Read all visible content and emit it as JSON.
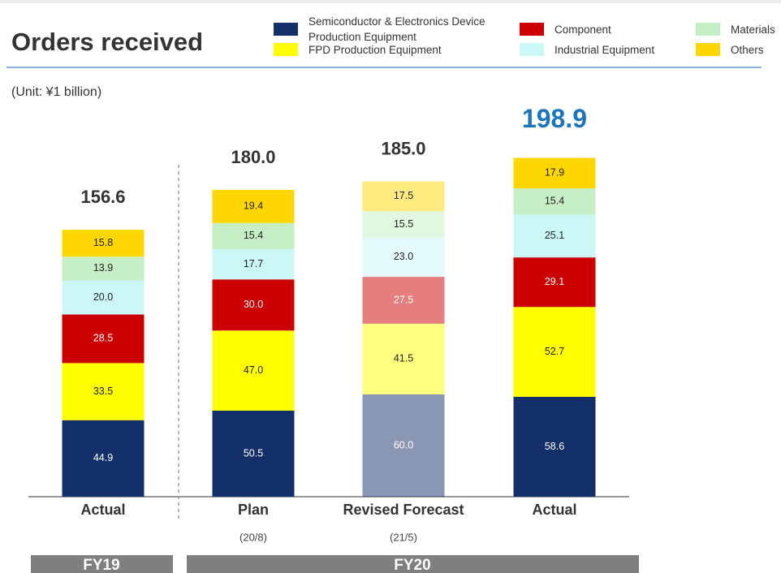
{
  "chart_data": {
    "type": "stacked_bar",
    "title": "Orders received",
    "subtitle": "(Unit: ¥1 billion)",
    "categories": [
      "Actual",
      "Plan",
      "Revised Forecast",
      "Actual"
    ],
    "sub_categories": [
      null,
      "(20/8)",
      "(21/5)",
      null
    ],
    "groups": [
      "FY19",
      "FY20"
    ],
    "faded": [
      false,
      false,
      true,
      false
    ],
    "totals": [
      156.6,
      180.0,
      185.0,
      198.9
    ],
    "totals_labels": [
      "156.6",
      "180.0",
      "185.0",
      "198.9"
    ],
    "highlight_total": [
      false,
      false,
      false,
      true
    ],
    "series": [
      {
        "name": "Semiconductor & Electronics Device Production Equipment",
        "color": "#14306b",
        "values": [
          44.9,
          50.5,
          60.0,
          58.6
        ],
        "value_labels": [
          "44.9",
          "50.5",
          "60.0",
          "58.6"
        ]
      },
      {
        "name": "FPD  Production Equipment",
        "color": "#ffff00",
        "values": [
          33.5,
          47.0,
          41.5,
          52.7
        ],
        "value_labels": [
          "33.5",
          "47.0",
          "41.5",
          "52.7"
        ]
      },
      {
        "name": "Component",
        "color": "#cc0000",
        "values": [
          28.5,
          30.0,
          27.5,
          29.1
        ],
        "value_labels": [
          "28.5",
          "30.0",
          "27.5",
          "29.1"
        ]
      },
      {
        "name": "Industrial Equipment",
        "color": "#ccf7f7",
        "values": [
          20.0,
          17.7,
          23.0,
          25.1
        ],
        "value_labels": [
          "20.0",
          "17.7",
          "23.0",
          "25.1"
        ]
      },
      {
        "name": "Materials",
        "color": "#c6efc6",
        "values": [
          13.9,
          15.4,
          15.5,
          15.4
        ],
        "value_labels": [
          "13.9",
          "15.4",
          "15.5",
          "15.4"
        ]
      },
      {
        "name": "Others",
        "color": "#ffd700",
        "values": [
          15.8,
          19.4,
          17.5,
          17.9
        ],
        "value_labels": [
          "15.8",
          "19.4",
          "17.5",
          "17.9"
        ]
      }
    ]
  }
}
